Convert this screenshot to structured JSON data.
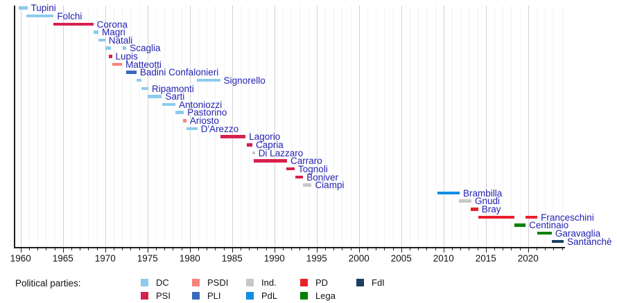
{
  "legend": {
    "title": "Political parties:",
    "columns": [
      [
        "DC",
        "PSI"
      ],
      [
        "PSDI",
        "PLI"
      ],
      [
        "Ind.",
        "PdL"
      ],
      [
        "PD",
        "Lega"
      ],
      [
        "FdI"
      ]
    ]
  },
  "chart_data": {
    "type": "timeline",
    "x_axis": {
      "min_year": 1959.2,
      "max_year": 2024.4,
      "major_ticks": [
        1960,
        1965,
        1970,
        1975,
        1980,
        1985,
        1990,
        1995,
        2000,
        2005,
        2010,
        2015,
        2020
      ],
      "minor_tick_step": 1,
      "grid": "vertical, yearly minor + 5-year major"
    },
    "label_color": "#2222b2",
    "parties": {
      "DC": "#8dcbec",
      "PSI": "#d6204e",
      "PSDI": "#f8837b",
      "PLI": "#3a69b8",
      "Ind.": "#c8c8c8",
      "PdL": "#0d8ee4",
      "PD": "#e8202c",
      "Lega": "#028002",
      "FdI": "#1b3e63"
    },
    "ministers": [
      {
        "name": "Tupini",
        "party": "DC",
        "terms": [
          [
            1959.8,
            1960.8
          ]
        ]
      },
      {
        "name": "Folchi",
        "party": "DC",
        "terms": [
          [
            1960.7,
            1963.9
          ]
        ]
      },
      {
        "name": "Corona",
        "party": "PSI",
        "terms": [
          [
            1963.9,
            1968.6
          ]
        ]
      },
      {
        "name": "Magri",
        "party": "DC",
        "terms": [
          [
            1968.6,
            1969.2
          ]
        ]
      },
      {
        "name": "Natali",
        "party": "DC",
        "terms": [
          [
            1969.2,
            1970.0
          ]
        ]
      },
      {
        "name": "Scaglia",
        "party": "DC",
        "terms": [
          [
            1970.0,
            1970.7
          ],
          [
            1972.1,
            1972.5
          ]
        ]
      },
      {
        "name": "Lupis",
        "party": "PSI",
        "terms": [
          [
            1970.4,
            1970.8
          ]
        ]
      },
      {
        "name": "Matteotti",
        "party": "PSDI",
        "terms": [
          [
            1970.8,
            1972.0
          ]
        ]
      },
      {
        "name": "Badini Confalonieri",
        "party": "PLI",
        "terms": [
          [
            1972.5,
            1973.7
          ]
        ]
      },
      {
        "name": "Signorello",
        "party": "DC",
        "terms": [
          [
            1973.7,
            1974.3
          ],
          [
            1980.8,
            1983.6
          ]
        ]
      },
      {
        "name": "Ripamonti",
        "party": "DC",
        "terms": [
          [
            1974.3,
            1975.1
          ]
        ]
      },
      {
        "name": "Sarti",
        "party": "DC",
        "terms": [
          [
            1975.0,
            1976.7
          ]
        ]
      },
      {
        "name": "Antoniozzi",
        "party": "DC",
        "terms": [
          [
            1976.7,
            1978.3
          ]
        ]
      },
      {
        "name": "Pastorino",
        "party": "DC",
        "terms": [
          [
            1978.3,
            1979.3
          ]
        ]
      },
      {
        "name": "Ariosto",
        "party": "PSDI",
        "terms": [
          [
            1979.2,
            1979.6
          ]
        ]
      },
      {
        "name": "D'Arezzo",
        "party": "DC",
        "terms": [
          [
            1979.6,
            1980.9
          ]
        ]
      },
      {
        "name": "Lagorio",
        "party": "PSI",
        "terms": [
          [
            1983.6,
            1986.6
          ]
        ]
      },
      {
        "name": "Capria",
        "party": "PSI",
        "terms": [
          [
            1986.7,
            1987.4
          ]
        ]
      },
      {
        "name": "Di Lazzaro",
        "party": "Ind.",
        "terms": [
          [
            1987.4,
            1987.7
          ]
        ]
      },
      {
        "name": "Carraro",
        "party": "PSI",
        "terms": [
          [
            1987.6,
            1991.5
          ]
        ]
      },
      {
        "name": "Tognoli",
        "party": "PSI",
        "terms": [
          [
            1991.4,
            1992.4
          ]
        ]
      },
      {
        "name": "Boniver",
        "party": "PSI",
        "terms": [
          [
            1992.5,
            1993.4
          ]
        ]
      },
      {
        "name": "Ciampi",
        "party": "Ind.",
        "terms": [
          [
            1993.4,
            1994.4
          ]
        ]
      },
      {
        "name": "Brambilla",
        "party": "PdL",
        "terms": [
          [
            2009.3,
            2011.9
          ]
        ]
      },
      {
        "name": "Gnudi",
        "party": "Ind.",
        "terms": [
          [
            2011.8,
            2013.3
          ]
        ]
      },
      {
        "name": "Bray",
        "party": "PD",
        "terms": [
          [
            2013.2,
            2014.1
          ]
        ]
      },
      {
        "name": "Franceschini",
        "party": "PD",
        "terms": [
          [
            2014.1,
            2018.4
          ],
          [
            2019.7,
            2021.1
          ]
        ]
      },
      {
        "name": "Centinaio",
        "party": "Lega",
        "terms": [
          [
            2018.4,
            2019.7
          ]
        ]
      },
      {
        "name": "Garavaglia",
        "party": "Lega",
        "terms": [
          [
            2021.1,
            2022.8
          ]
        ]
      },
      {
        "name": "Santanchè",
        "party": "FdI",
        "terms": [
          [
            2022.8,
            2024.2
          ]
        ]
      }
    ]
  }
}
